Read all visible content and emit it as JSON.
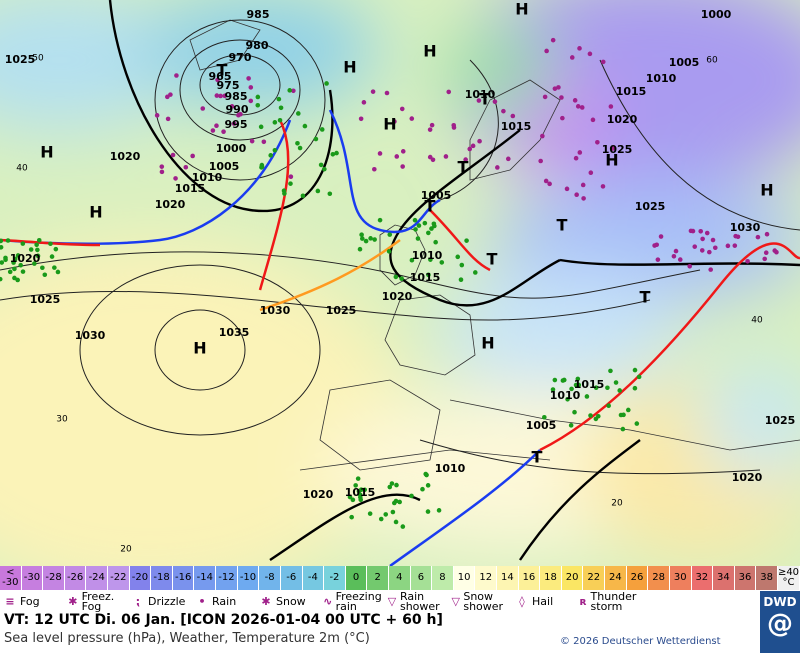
{
  "map": {
    "isobar_labels": [
      "985",
      "980",
      "970",
      "965",
      "975",
      "985",
      "990",
      "995",
      "1000",
      "1005",
      "1010",
      "1015",
      "1020",
      "1020",
      "1025",
      "1020",
      "1025",
      "1030",
      "1035",
      "1030",
      "1025",
      "1020",
      "1015",
      "1010",
      "1005",
      "1010",
      "1015",
      "1000",
      "1005",
      "1010",
      "1015",
      "1020",
      "1025",
      "1025",
      "1030",
      "1015",
      "1010",
      "1005",
      "1010",
      "1015",
      "1020",
      "1020",
      "1025"
    ],
    "pressure_centers": [
      "H",
      "H",
      "H",
      "H",
      "H",
      "H",
      "H",
      "H",
      "H",
      "H",
      "T",
      "T",
      "T",
      "T",
      "T",
      "T",
      "T",
      "T"
    ],
    "grid_labels": [
      "50",
      "40",
      "30",
      "20",
      "60",
      "40",
      "20"
    ]
  },
  "color_scale": {
    "below_label": "<",
    "values": [
      -30,
      -28,
      -26,
      -24,
      -22,
      -20,
      -18,
      -16,
      -14,
      -12,
      -10,
      -8,
      -6,
      -4,
      -2,
      0,
      2,
      4,
      6,
      8,
      10,
      12,
      14,
      16,
      18,
      20,
      22,
      24,
      26,
      28,
      30,
      32,
      34,
      36,
      38
    ],
    "above_label": "≥40",
    "unit": "°C"
  },
  "legend": [
    "Fog",
    "Freez. Fog",
    "Drizzle",
    "Rain",
    "Snow",
    "Freezing rain",
    "Rain shower",
    "Snow shower",
    "Hail",
    "Thunder storm"
  ],
  "footer": {
    "valid_time": "VT: 12 UTC Di.  06 Jan. [ICON 2026-01-04  00 UTC + 60 h]",
    "description": "Sea level pressure (hPa), Weather, Temperature 2m (°C)",
    "copyright": "© 2026 Deutscher Wetterdienst",
    "logo": "DWD"
  }
}
